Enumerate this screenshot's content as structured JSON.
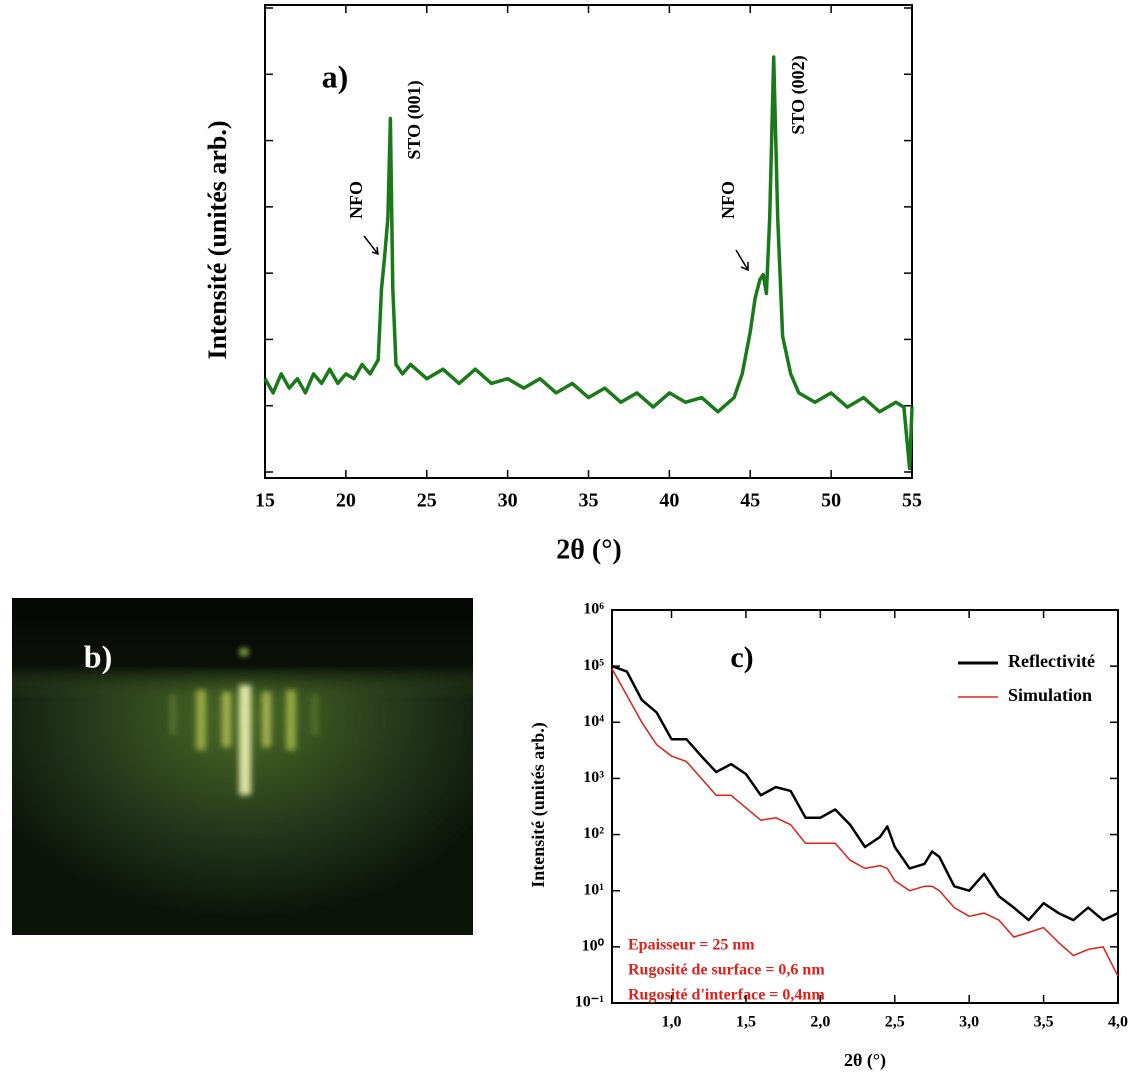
{
  "chart_data": [
    {
      "type": "line",
      "title": "a)",
      "y_label": "Intensité (unités arb.)",
      "x_label": "2θ (°)",
      "x": [
        15,
        15.5,
        16,
        16.5,
        17,
        17.5,
        18,
        18.5,
        19,
        19.5,
        20,
        20.5,
        21,
        21.5,
        22,
        22.2,
        22.4,
        22.6,
        22.75,
        22.9,
        23.1,
        23.5,
        24,
        25,
        26,
        27,
        28,
        29,
        30,
        31,
        32,
        33,
        34,
        35,
        36,
        37,
        38,
        39,
        40,
        41,
        42,
        43,
        44,
        44.5,
        45,
        45.3,
        45.6,
        45.8,
        46.0,
        46.2,
        46.45,
        46.7,
        47,
        47.5,
        48,
        49,
        50,
        51,
        52,
        53,
        54,
        54.5,
        54.85,
        55
      ],
      "series": [
        {
          "color": "#1a7a1a",
          "values": [
            21,
            18,
            22,
            19,
            21,
            18,
            22,
            20,
            23,
            20,
            22,
            21,
            24,
            22,
            25,
            40,
            47,
            55,
            76,
            40,
            24,
            22,
            24,
            21,
            23,
            20,
            23,
            20,
            21,
            19,
            21,
            18,
            20,
            17,
            19,
            16,
            18,
            15,
            18,
            16,
            17,
            14,
            17,
            22,
            31,
            38,
            42,
            43,
            39,
            55,
            89,
            55,
            30,
            22,
            18,
            16,
            18,
            15,
            17,
            14,
            16,
            15,
            2,
            15
          ]
        }
      ],
      "xlim": [
        15,
        55
      ],
      "xticks": [
        15,
        20,
        25,
        30,
        35,
        40,
        45,
        50,
        55
      ],
      "ylim": [
        0,
        100
      ],
      "annotations": [
        {
          "text": "NFO"
        },
        {
          "text": "STO (001)"
        },
        {
          "text": "NFO"
        },
        {
          "text": "STO (002)"
        }
      ]
    },
    {
      "type": "line",
      "title": "c)",
      "y_label": "Intensité (unités arb.)",
      "x_label": "2θ (°)",
      "log_y": true,
      "legend": "upper right",
      "x": [
        0.6,
        0.7,
        0.8,
        0.9,
        1.0,
        1.1,
        1.2,
        1.3,
        1.4,
        1.5,
        1.6,
        1.7,
        1.8,
        1.9,
        2.0,
        2.1,
        2.2,
        2.3,
        2.4,
        2.45,
        2.5,
        2.6,
        2.7,
        2.75,
        2.8,
        2.9,
        3.0,
        3.1,
        3.2,
        3.3,
        3.4,
        3.5,
        3.6,
        3.7,
        3.8,
        3.9,
        4.0
      ],
      "series": [
        {
          "name": "Reflectivité",
          "color": "#000000",
          "values": [
            100000,
            80000,
            25000,
            15000,
            5000,
            5000,
            2500,
            1300,
            1800,
            1200,
            500,
            700,
            600,
            200,
            200,
            280,
            150,
            60,
            90,
            140,
            60,
            25,
            30,
            50,
            40,
            12,
            10,
            20,
            8,
            5,
            3,
            6,
            4,
            3,
            5,
            3,
            4
          ]
        },
        {
          "name": "Simulation",
          "color": "#e0201b",
          "values": [
            90000,
            30000,
            10000,
            4000,
            2500,
            2000,
            1000,
            500,
            500,
            300,
            180,
            200,
            150,
            70,
            70,
            70,
            35,
            25,
            28,
            25,
            15,
            10,
            12,
            12,
            10,
            5,
            3.5,
            4,
            3,
            1.5,
            1.8,
            2.2,
            1.2,
            0.7,
            0.9,
            1,
            0.3
          ]
        }
      ],
      "xlim": [
        0.6,
        4.0
      ],
      "xticks": [
        {
          "value": 1,
          "label": "1,0"
        },
        {
          "value": 1.5,
          "label": "1,5"
        },
        {
          "value": 2,
          "label": "2,0"
        },
        {
          "value": 2.5,
          "label": "2,5"
        },
        {
          "value": 3,
          "label": "3,0"
        },
        {
          "value": 3.5,
          "label": "3,5"
        },
        {
          "value": 4,
          "label": "4,0"
        }
      ],
      "ylim": [
        0.1,
        1000000
      ],
      "yticks": [
        {
          "value": 0.1,
          "label": "10⁻¹"
        },
        {
          "value": 1,
          "label": "10⁰"
        },
        {
          "value": 10,
          "label": "10¹"
        },
        {
          "value": 100,
          "label": "10²"
        },
        {
          "value": 1000,
          "label": "10³"
        },
        {
          "value": 10000,
          "label": "10⁴"
        },
        {
          "value": 100000,
          "label": "10⁵"
        },
        {
          "value": 1000000,
          "label": "10⁶"
        }
      ],
      "annotations": [
        {
          "text": "Epaisseur = 25 nm"
        },
        {
          "text": "Rugosité de surface = 0,6 nm"
        },
        {
          "text": "Rugosité d'interface = 0,4nm"
        }
      ]
    }
  ],
  "image_panel": {
    "label": "b)"
  }
}
